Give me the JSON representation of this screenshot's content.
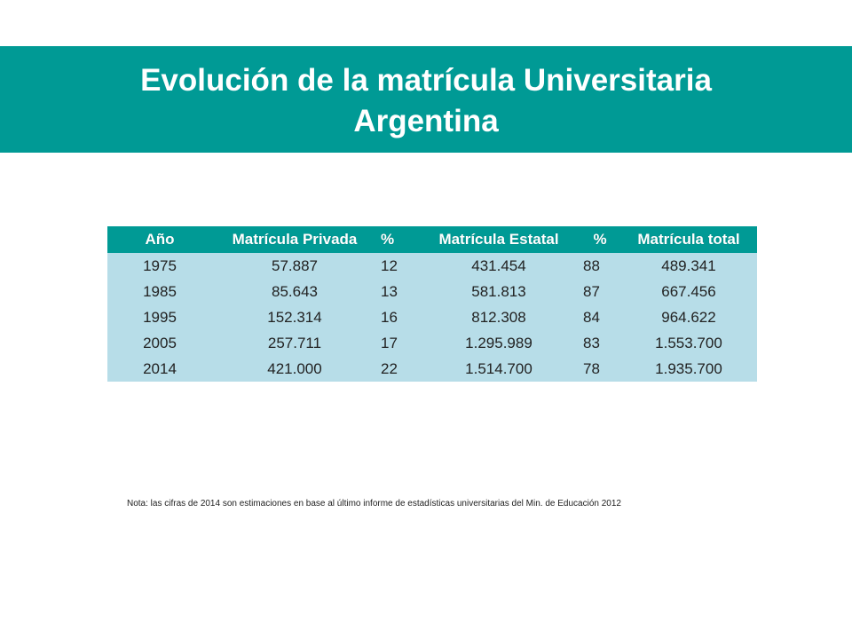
{
  "title": {
    "line1": "Evolución de la matrícula Universitaria",
    "line2": "Argentina"
  },
  "table": {
    "headers": [
      "Año",
      "Matrícula Privada",
      "%",
      "Matrícula Estatal",
      "%",
      "Matrícula total"
    ],
    "rows": [
      [
        "1975",
        "57.887",
        "12",
        "431.454",
        "88",
        "489.341"
      ],
      [
        "1985",
        "85.643",
        "13",
        "581.813",
        "87",
        "667.456"
      ],
      [
        "1995",
        "152.314",
        "16",
        "812.308",
        "84",
        "964.622"
      ],
      [
        "2005",
        "257.711",
        "17",
        "1.295.989",
        "83",
        "1.553.700"
      ],
      [
        "2014",
        "421.000",
        "22",
        "1.514.700",
        "78",
        "1.935.700"
      ]
    ]
  },
  "note": "Nota: las cifras de 2014 son estimaciones en base al último informe de estadísticas   universitarias del Min. de Educación  2012",
  "colors": {
    "teal": "#009a95",
    "row_fill": "#b7dde8",
    "title_text": "#ffffff"
  }
}
